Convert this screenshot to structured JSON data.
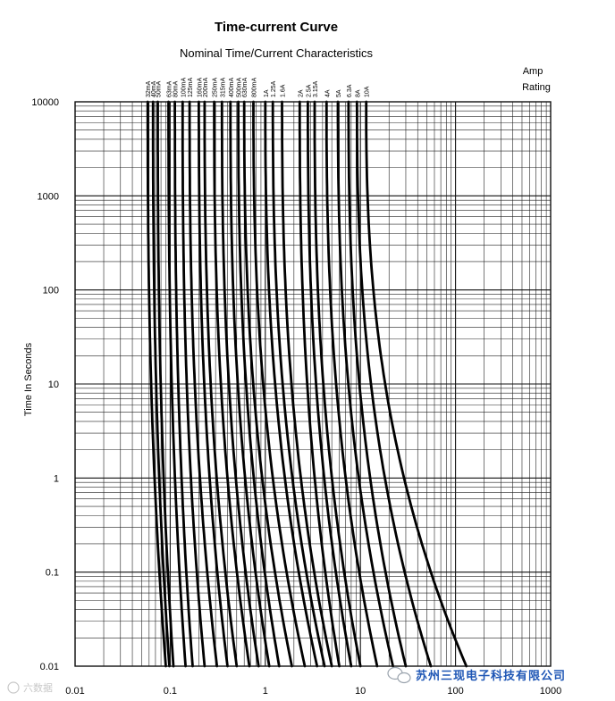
{
  "chart_data": {
    "type": "line",
    "title": "Time-current Curve",
    "subtitle": "Nominal Time/Current Characteristics",
    "ylabel": "Time In Seconds",
    "xlabel": "",
    "legend_title_line1": "Amp",
    "legend_title_line2": "Rating",
    "x_scale": "log",
    "y_scale": "log",
    "xlim": [
      0.01,
      1000
    ],
    "ylim": [
      0.01,
      10000
    ],
    "grid": true,
    "x_ticks": [
      "0.01",
      "0.1",
      "1",
      "10",
      "100",
      "1000"
    ],
    "y_ticks": [
      "10000",
      "1000",
      "100",
      "10",
      "1",
      "0.1",
      "0.01"
    ],
    "series": [
      {
        "name": "32mA",
        "i_10000s": 0.058,
        "i_001s": 0.09
      },
      {
        "name": "40mA",
        "i_10000s": 0.066,
        "i_001s": 0.098
      },
      {
        "name": "50mA",
        "i_10000s": 0.074,
        "i_001s": 0.108
      },
      {
        "name": "63mA",
        "i_10000s": 0.096,
        "i_001s": 0.145
      },
      {
        "name": "80mA",
        "i_10000s": 0.112,
        "i_001s": 0.172
      },
      {
        "name": "100mA",
        "i_10000s": 0.135,
        "i_001s": 0.23
      },
      {
        "name": "125mA",
        "i_10000s": 0.16,
        "i_001s": 0.31
      },
      {
        "name": "160mA",
        "i_10000s": 0.2,
        "i_001s": 0.4
      },
      {
        "name": "200mA",
        "i_10000s": 0.23,
        "i_001s": 0.5
      },
      {
        "name": "250mA",
        "i_10000s": 0.29,
        "i_001s": 0.68
      },
      {
        "name": "315mA",
        "i_10000s": 0.35,
        "i_001s": 0.85
      },
      {
        "name": "400mA",
        "i_10000s": 0.43,
        "i_001s": 1.1
      },
      {
        "name": "500mA",
        "i_10000s": 0.52,
        "i_001s": 1.4
      },
      {
        "name": "630mA",
        "i_10000s": 0.6,
        "i_001s": 1.9
      },
      {
        "name": "800mA",
        "i_10000s": 0.75,
        "i_001s": 2.6
      },
      {
        "name": "1A",
        "i_10000s": 1.0,
        "i_001s": 3.5
      },
      {
        "name": "1.25A",
        "i_10000s": 1.2,
        "i_001s": 4.2
      },
      {
        "name": "1.6A",
        "i_10000s": 1.5,
        "i_001s": 5.0
      },
      {
        "name": "2A",
        "i_10000s": 2.3,
        "i_001s": 6.0
      },
      {
        "name": "2.5A",
        "i_10000s": 2.8,
        "i_001s": 8.0
      },
      {
        "name": "3.15A",
        "i_10000s": 3.3,
        "i_001s": 10.0
      },
      {
        "name": "4A",
        "i_10000s": 4.4,
        "i_001s": 15.0
      },
      {
        "name": "5A",
        "i_10000s": 5.8,
        "i_001s": 22.0
      },
      {
        "name": "6.3A",
        "i_10000s": 7.5,
        "i_001s": 30.0
      },
      {
        "name": "8A",
        "i_10000s": 9.2,
        "i_001s": 55.0
      },
      {
        "name": "10A",
        "i_10000s": 11.5,
        "i_001s": 130.0
      }
    ]
  },
  "watermark_right": "苏州三现电子科技有限公司",
  "watermark_left": "六数据"
}
